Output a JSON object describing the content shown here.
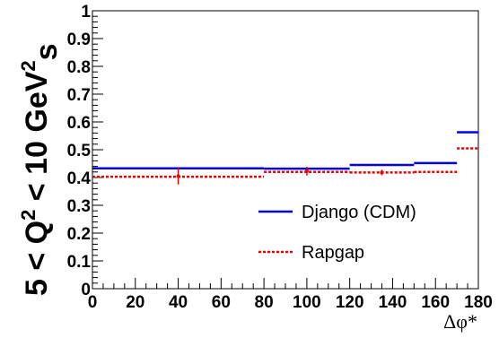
{
  "chart_data": {
    "type": "line",
    "title": "",
    "xlabel": "Δφ*",
    "ylabel": {
      "prefix": "5 < Q",
      "sup1": "2",
      "middle": " < 10 GeV",
      "sup2": "2",
      "suffix": "s"
    },
    "xlim": [
      0,
      180
    ],
    "ylim": [
      0,
      1
    ],
    "xticks": [
      "0",
      "20",
      "40",
      "60",
      "80",
      "100",
      "120",
      "140",
      "160",
      "180"
    ],
    "yticks": [
      "0",
      "0.1",
      "0.2",
      "0.3",
      "0.4",
      "0.5",
      "0.6",
      "0.7",
      "0.8",
      "0.9",
      "1"
    ],
    "legend_position": "bottom-right",
    "bin_edges": [
      0,
      80,
      120,
      150,
      170,
      180
    ],
    "series": [
      {
        "name": "Django (CDM)",
        "color": "#0000ee",
        "style": "solid",
        "values": [
          0.433,
          0.432,
          0.445,
          0.452,
          0.563
        ],
        "markers": []
      },
      {
        "name": "Rapgap",
        "color": "#ee0000",
        "style": "dotted",
        "values": [
          0.403,
          0.42,
          0.418,
          0.42,
          0.505
        ],
        "markers": [
          {
            "x": 40,
            "y": 0.405,
            "err": 0.03
          },
          {
            "x": 100,
            "y": 0.423,
            "err": 0.016
          },
          {
            "x": 135,
            "y": 0.418,
            "err": 0.01
          }
        ]
      }
    ]
  }
}
